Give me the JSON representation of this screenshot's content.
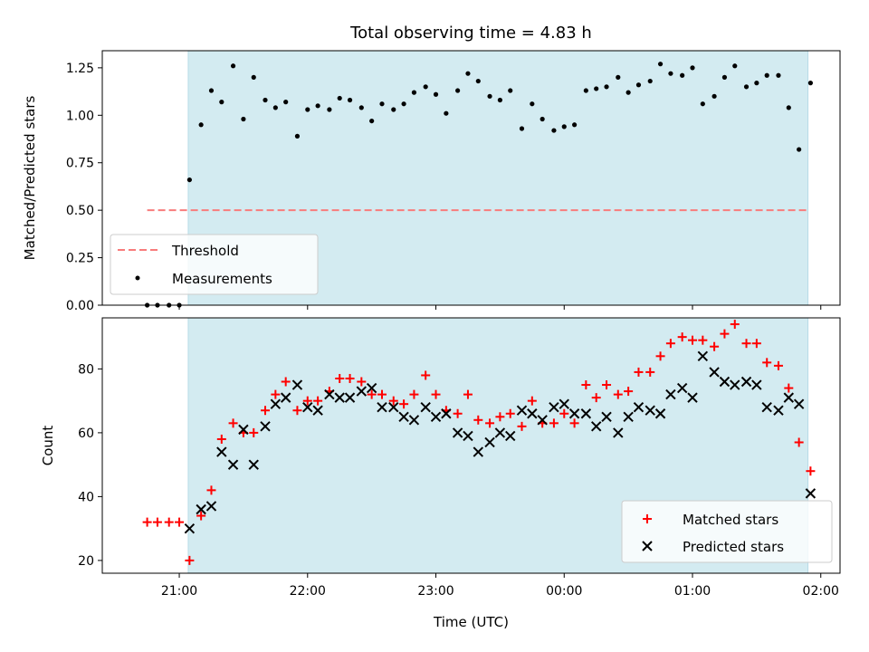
{
  "chart_data": [
    {
      "type": "scatter",
      "title": "Total observing time = 4.83 h",
      "ylabel": "Matched/Predicted stars",
      "ylim": [
        0,
        1.34
      ],
      "yticks": [
        "0.00",
        "0.25",
        "0.50",
        "0.75",
        "1.00",
        "1.25"
      ],
      "ytick_values": [
        0,
        0.25,
        0.5,
        0.75,
        1.0,
        1.25
      ],
      "shaded_span": {
        "start_hour": 21.07,
        "end_hour": 25.9
      },
      "legend_position": "lower-left",
      "series": [
        {
          "name": "Threshold",
          "kind": "dashed-line",
          "color": "#f87c7c",
          "x": [
            20.75,
            25.9
          ],
          "y": [
            0.5,
            0.5
          ]
        },
        {
          "name": "Measurements",
          "kind": "dot",
          "color": "#000000",
          "x": [
            20.75,
            20.83,
            20.92,
            21.0,
            21.08,
            21.17,
            21.25,
            21.33,
            21.42,
            21.5,
            21.58,
            21.67,
            21.75,
            21.83,
            21.92,
            22.0,
            22.08,
            22.17,
            22.25,
            22.33,
            22.42,
            22.5,
            22.58,
            22.67,
            22.75,
            22.83,
            22.92,
            23.0,
            23.08,
            23.17,
            23.25,
            23.33,
            23.42,
            23.5,
            23.58,
            23.67,
            23.75,
            23.83,
            23.92,
            24.0,
            24.08,
            24.17,
            24.25,
            24.33,
            24.42,
            24.5,
            24.58,
            24.67,
            24.75,
            24.83,
            24.92,
            25.0,
            25.08,
            25.17,
            25.25,
            25.33,
            25.42,
            25.5,
            25.58,
            25.67,
            25.75,
            25.83,
            25.92
          ],
          "y": [
            0.0,
            0.0,
            0.0,
            0.0,
            0.66,
            0.95,
            1.13,
            1.07,
            1.26,
            0.98,
            1.2,
            1.08,
            1.04,
            1.07,
            0.89,
            1.03,
            1.05,
            1.03,
            1.09,
            1.08,
            1.04,
            0.97,
            1.06,
            1.03,
            1.06,
            1.12,
            1.15,
            1.11,
            1.01,
            1.13,
            1.22,
            1.18,
            1.1,
            1.08,
            1.13,
            0.93,
            1.06,
            0.98,
            0.92,
            0.94,
            0.95,
            1.13,
            1.14,
            1.15,
            1.2,
            1.12,
            1.16,
            1.18,
            1.27,
            1.22,
            1.21,
            1.25,
            1.06,
            1.1,
            1.2,
            1.26,
            1.15,
            1.17,
            1.21,
            1.21,
            1.04,
            0.82,
            1.17
          ]
        }
      ]
    },
    {
      "type": "scatter",
      "xlabel": "Time (UTC)",
      "ylabel": "Count",
      "ylim": [
        16,
        96
      ],
      "yticks": [
        "20",
        "40",
        "60",
        "80"
      ],
      "ytick_values": [
        20,
        40,
        60,
        80
      ],
      "xlim_hours": [
        20.4,
        26.15
      ],
      "xticks": [
        "21:00",
        "22:00",
        "23:00",
        "00:00",
        "01:00",
        "02:00"
      ],
      "xtick_hours": [
        21,
        22,
        23,
        24,
        25,
        26
      ],
      "shaded_span": {
        "start_hour": 21.07,
        "end_hour": 25.9
      },
      "legend_position": "lower-right",
      "series": [
        {
          "name": "Matched stars",
          "kind": "plus",
          "color": "#ff0000",
          "x": [
            20.75,
            20.83,
            20.92,
            21.0,
            21.08,
            21.17,
            21.25,
            21.33,
            21.42,
            21.5,
            21.58,
            21.67,
            21.75,
            21.83,
            21.92,
            22.0,
            22.08,
            22.17,
            22.25,
            22.33,
            22.42,
            22.5,
            22.58,
            22.67,
            22.75,
            22.83,
            22.92,
            23.0,
            23.08,
            23.17,
            23.25,
            23.33,
            23.42,
            23.5,
            23.58,
            23.67,
            23.75,
            23.83,
            23.92,
            24.0,
            24.08,
            24.17,
            24.25,
            24.33,
            24.42,
            24.5,
            24.58,
            24.67,
            24.75,
            24.83,
            24.92,
            25.0,
            25.08,
            25.17,
            25.25,
            25.33,
            25.42,
            25.5,
            25.58,
            25.67,
            25.75,
            25.83,
            25.92
          ],
          "y": [
            32,
            32,
            32,
            32,
            20,
            34,
            42,
            58,
            63,
            60,
            60,
            67,
            72,
            76,
            67,
            70,
            70,
            73,
            77,
            77,
            76,
            72,
            72,
            70,
            69,
            72,
            78,
            72,
            67,
            66,
            72,
            64,
            63,
            65,
            66,
            62,
            70,
            63,
            63,
            66,
            63,
            75,
            71,
            75,
            72,
            73,
            79,
            79,
            84,
            88,
            90,
            89,
            89,
            87,
            91,
            94,
            88,
            88,
            82,
            81,
            74,
            57,
            48
          ]
        },
        {
          "name": "Predicted stars",
          "kind": "cross",
          "color": "#000000",
          "x": [
            21.08,
            21.17,
            21.25,
            21.33,
            21.42,
            21.5,
            21.58,
            21.67,
            21.75,
            21.83,
            21.92,
            22.0,
            22.08,
            22.17,
            22.25,
            22.33,
            22.42,
            22.5,
            22.58,
            22.67,
            22.75,
            22.83,
            22.92,
            23.0,
            23.08,
            23.17,
            23.25,
            23.33,
            23.42,
            23.5,
            23.58,
            23.67,
            23.75,
            23.83,
            23.92,
            24.0,
            24.08,
            24.17,
            24.25,
            24.33,
            24.42,
            24.5,
            24.58,
            24.67,
            24.75,
            24.83,
            24.92,
            25.0,
            25.08,
            25.17,
            25.25,
            25.33,
            25.42,
            25.5,
            25.58,
            25.67,
            25.75,
            25.83,
            25.92
          ],
          "y": [
            30,
            36,
            37,
            54,
            50,
            61,
            50,
            62,
            69,
            71,
            75,
            68,
            67,
            72,
            71,
            71,
            73,
            74,
            68,
            68,
            65,
            64,
            68,
            65,
            66,
            60,
            59,
            54,
            57,
            60,
            59,
            67,
            66,
            64,
            68,
            69,
            66,
            66,
            62,
            65,
            60,
            65,
            68,
            67,
            66,
            72,
            74,
            71,
            84,
            79,
            76,
            75,
            76,
            75,
            68,
            67,
            71,
            69,
            41
          ]
        }
      ]
    }
  ]
}
